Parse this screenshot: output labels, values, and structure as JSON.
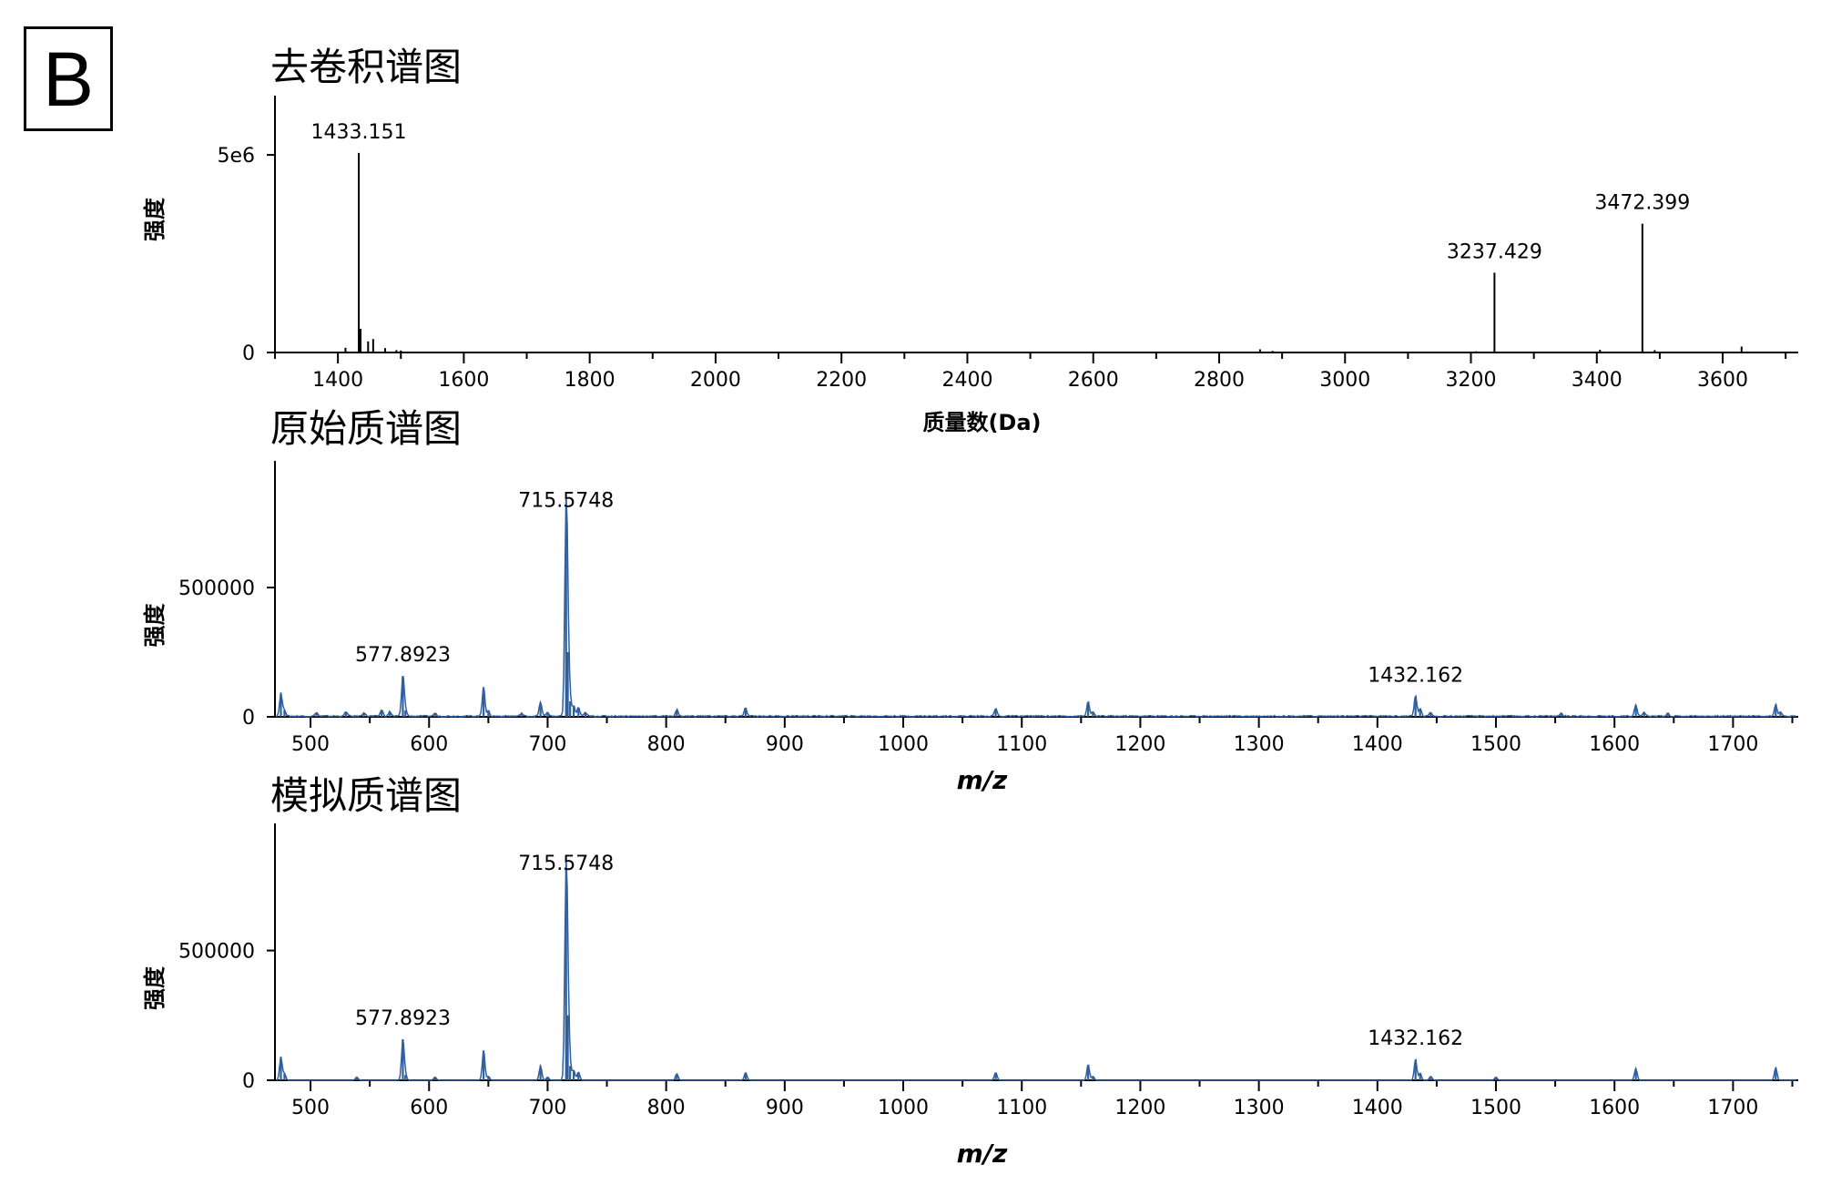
{
  "panel_label": "B",
  "colors": {
    "axis": "#000000",
    "deconv_peak": "#000000",
    "spectrum": "#2e5f9e"
  },
  "chart_data": [
    {
      "type": "bar",
      "title": "去卷积谱图",
      "xlabel": "质量数(Da)",
      "ylabel": "强度",
      "xlim": [
        1300,
        3720
      ],
      "ylim": [
        0,
        6500000
      ],
      "xticks": [
        1400,
        1600,
        1800,
        2000,
        2200,
        2400,
        2600,
        2800,
        3000,
        3200,
        3400,
        3600
      ],
      "yticks": [
        0,
        5000000
      ],
      "ytick_labels": [
        "0",
        "5e6"
      ],
      "annotations": [
        {
          "x": 1433.151,
          "text": "1433.151"
        },
        {
          "x": 3237.429,
          "text": "3237.429"
        },
        {
          "x": 3472.399,
          "text": "3472.399"
        }
      ],
      "peaks": [
        [
          1412,
          120000
        ],
        [
          1433.151,
          5050000
        ],
        [
          1436,
          600000
        ],
        [
          1448,
          280000
        ],
        [
          1456,
          340000
        ],
        [
          1475,
          110000
        ],
        [
          1493,
          60000
        ],
        [
          1500,
          50000
        ],
        [
          1730,
          25000
        ],
        [
          2865,
          80000
        ],
        [
          2885,
          40000
        ],
        [
          3208,
          30000
        ],
        [
          3237.429,
          2020000
        ],
        [
          3405,
          70000
        ],
        [
          3472.399,
          3260000
        ],
        [
          3492,
          60000
        ],
        [
          3630,
          150000
        ]
      ]
    },
    {
      "type": "line",
      "title": "原始质谱图",
      "xlabel": "m/z",
      "ylabel": "强度",
      "xlim": [
        470,
        1755
      ],
      "ylim": [
        0,
        990000
      ],
      "xticks": [
        500,
        600,
        700,
        800,
        900,
        1000,
        1100,
        1200,
        1300,
        1400,
        1500,
        1600,
        1700
      ],
      "yticks": [
        0,
        500000
      ],
      "ytick_labels": [
        "0",
        "500000"
      ],
      "annotations": [
        {
          "x": 577.8923,
          "text": "577.8923"
        },
        {
          "x": 715.5748,
          "text": "715.5748"
        },
        {
          "x": 1432.162,
          "text": "1432.162"
        }
      ],
      "peaks": [
        [
          475,
          90000
        ],
        [
          478,
          25000
        ],
        [
          505,
          15000
        ],
        [
          530,
          18000
        ],
        [
          545,
          15000
        ],
        [
          560,
          25000
        ],
        [
          567,
          18000
        ],
        [
          577.8923,
          158000
        ],
        [
          580,
          25000
        ],
        [
          605,
          12000
        ],
        [
          646,
          115000
        ],
        [
          650,
          20000
        ],
        [
          678,
          12000
        ],
        [
          694,
          55000
        ],
        [
          700,
          15000
        ],
        [
          715.5748,
          755000
        ],
        [
          717,
          250000
        ],
        [
          719,
          60000
        ],
        [
          722,
          40000
        ],
        [
          726,
          35000
        ],
        [
          732,
          15000
        ],
        [
          809,
          25000
        ],
        [
          867,
          32000
        ],
        [
          1078,
          30000
        ],
        [
          1156,
          58000
        ],
        [
          1160,
          15000
        ],
        [
          1432.162,
          80000
        ],
        [
          1436,
          30000
        ],
        [
          1445,
          15000
        ],
        [
          1555,
          12000
        ],
        [
          1618,
          45000
        ],
        [
          1625,
          15000
        ],
        [
          1645,
          12000
        ],
        [
          1736,
          48000
        ],
        [
          1740,
          15000
        ]
      ],
      "noise_level": 10000
    },
    {
      "type": "line",
      "title": "模拟质谱图",
      "xlabel": "m/z",
      "ylabel": "强度",
      "xlim": [
        470,
        1755
      ],
      "ylim": [
        0,
        990000
      ],
      "xticks": [
        500,
        600,
        700,
        800,
        900,
        1000,
        1100,
        1200,
        1300,
        1400,
        1500,
        1600,
        1700
      ],
      "yticks": [
        0,
        500000
      ],
      "ytick_labels": [
        "0",
        "500000"
      ],
      "annotations": [
        {
          "x": 577.8923,
          "text": "577.8923"
        },
        {
          "x": 715.5748,
          "text": "715.5748"
        },
        {
          "x": 1432.162,
          "text": "1432.162"
        }
      ],
      "peaks": [
        [
          475,
          90000
        ],
        [
          478,
          25000
        ],
        [
          539,
          12000
        ],
        [
          577.8923,
          158000
        ],
        [
          580,
          20000
        ],
        [
          605,
          12000
        ],
        [
          646,
          115000
        ],
        [
          650,
          15000
        ],
        [
          694,
          55000
        ],
        [
          700,
          12000
        ],
        [
          715.5748,
          755000
        ],
        [
          717,
          250000
        ],
        [
          719,
          55000
        ],
        [
          722,
          38000
        ],
        [
          726,
          32000
        ],
        [
          809,
          25000
        ],
        [
          867,
          30000
        ],
        [
          1078,
          30000
        ],
        [
          1156,
          60000
        ],
        [
          1160,
          15000
        ],
        [
          1432.162,
          80000
        ],
        [
          1436,
          28000
        ],
        [
          1445,
          15000
        ],
        [
          1500,
          12000
        ],
        [
          1618,
          45000
        ],
        [
          1736,
          48000
        ]
      ],
      "noise_level": 0
    }
  ]
}
